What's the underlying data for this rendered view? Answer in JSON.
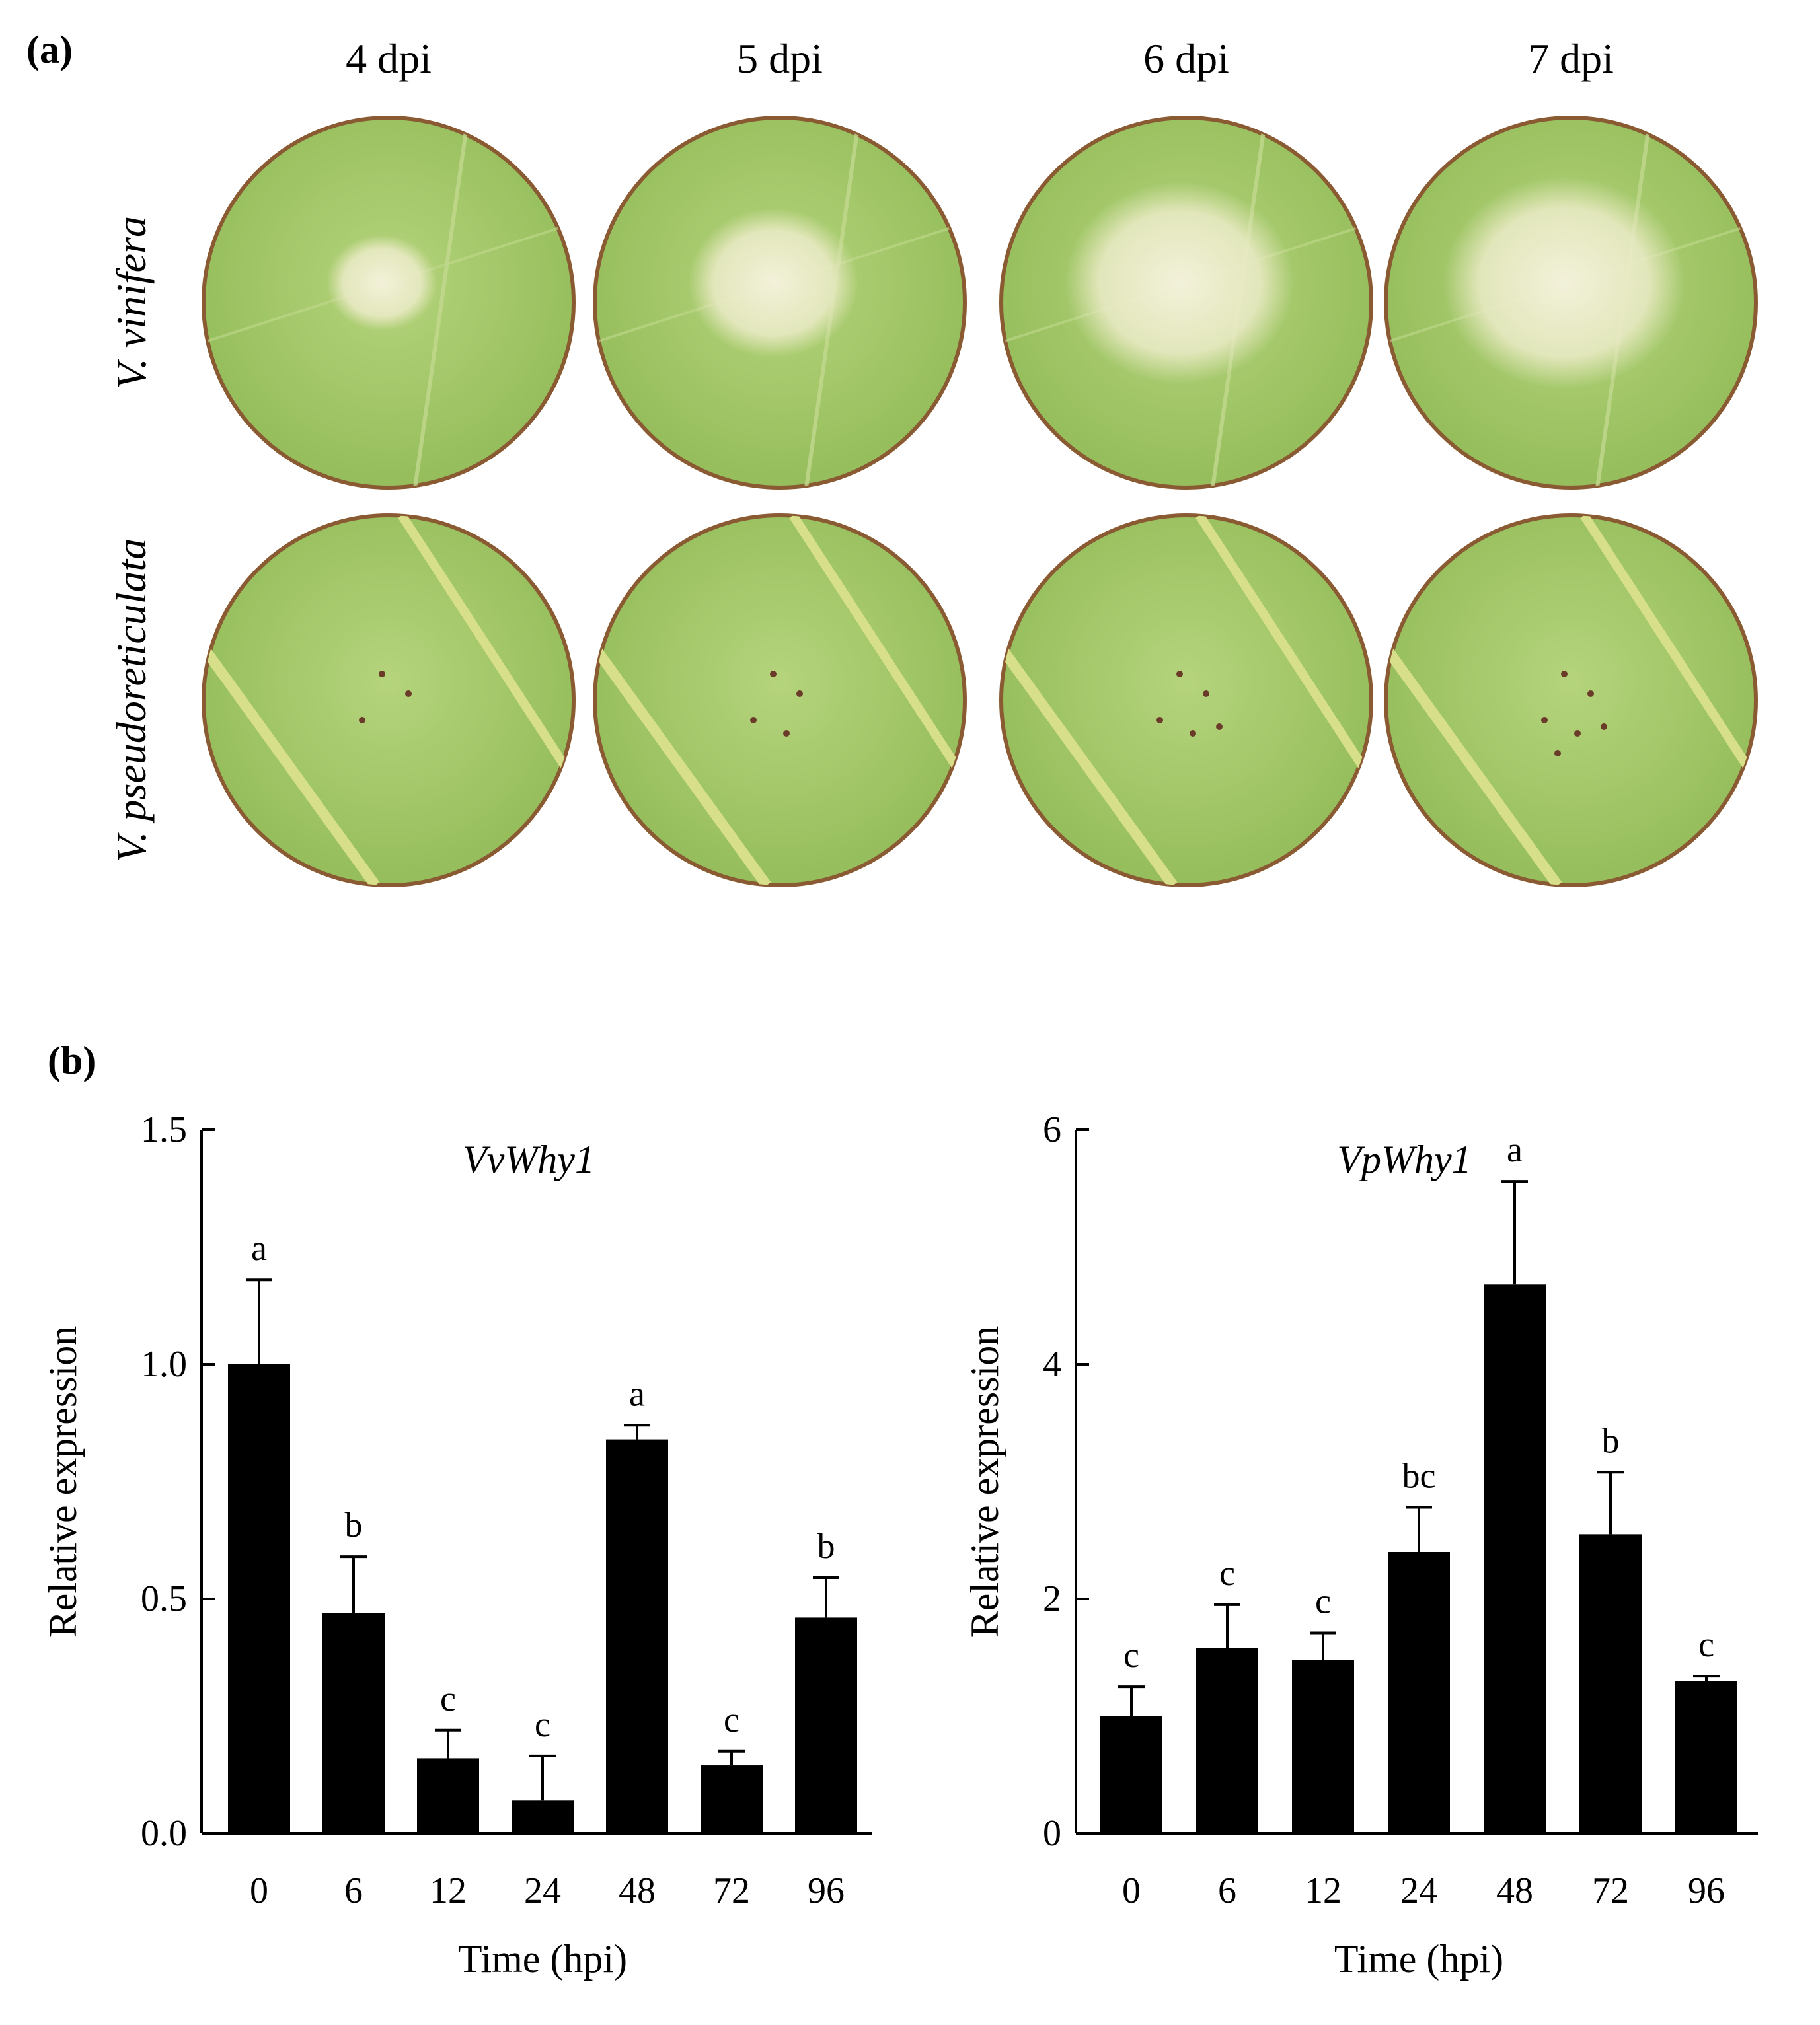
{
  "panel_a": {
    "label": "(a)",
    "columns": [
      "4 dpi",
      "5 dpi",
      "6 dpi",
      "7 dpi"
    ],
    "rows": [
      "V. vinifera",
      "V. pseudoreticulata"
    ],
    "leaf_color": "#a3c86a",
    "leaf_edge_color": "#8a5a32",
    "mildew_color": "#f2f0da",
    "mildew_levels": [
      0.3,
      0.55,
      0.8,
      0.85
    ]
  },
  "panel_b": {
    "label": "(b)"
  },
  "chart_data": [
    {
      "type": "bar",
      "title": "VvWhy1",
      "xlabel": "Time (hpi)",
      "ylabel": "Relative expression",
      "categories": [
        "0",
        "6",
        "12",
        "24",
        "48",
        "72",
        "96"
      ],
      "values": [
        1.0,
        0.47,
        0.16,
        0.07,
        0.84,
        0.145,
        0.46
      ],
      "errors": [
        0.18,
        0.12,
        0.06,
        0.095,
        0.03,
        0.03,
        0.085
      ],
      "significance": [
        "a",
        "b",
        "c",
        "c",
        "a",
        "c",
        "b"
      ],
      "ylim": [
        0,
        1.5
      ],
      "yticks": [
        "0.0",
        "0.5",
        "1.0",
        "1.5"
      ],
      "ytick_values": [
        0,
        0.5,
        1.0,
        1.5
      ],
      "bar_color": "#000000",
      "grid": false
    },
    {
      "type": "bar",
      "title": "VpWhy1",
      "xlabel": "Time (hpi)",
      "ylabel": "Relative expression",
      "categories": [
        "0",
        "6",
        "12",
        "24",
        "48",
        "72",
        "96"
      ],
      "values": [
        1.0,
        1.58,
        1.48,
        2.4,
        4.68,
        2.55,
        1.3
      ],
      "errors": [
        0.25,
        0.37,
        0.23,
        0.38,
        0.88,
        0.53,
        0.04
      ],
      "significance": [
        "c",
        "c",
        "c",
        "bc",
        "a",
        "b",
        "c"
      ],
      "ylim": [
        0,
        6
      ],
      "yticks": [
        "0",
        "2",
        "4",
        "6"
      ],
      "ytick_values": [
        0,
        2,
        4,
        6
      ],
      "bar_color": "#000000",
      "grid": false
    }
  ]
}
